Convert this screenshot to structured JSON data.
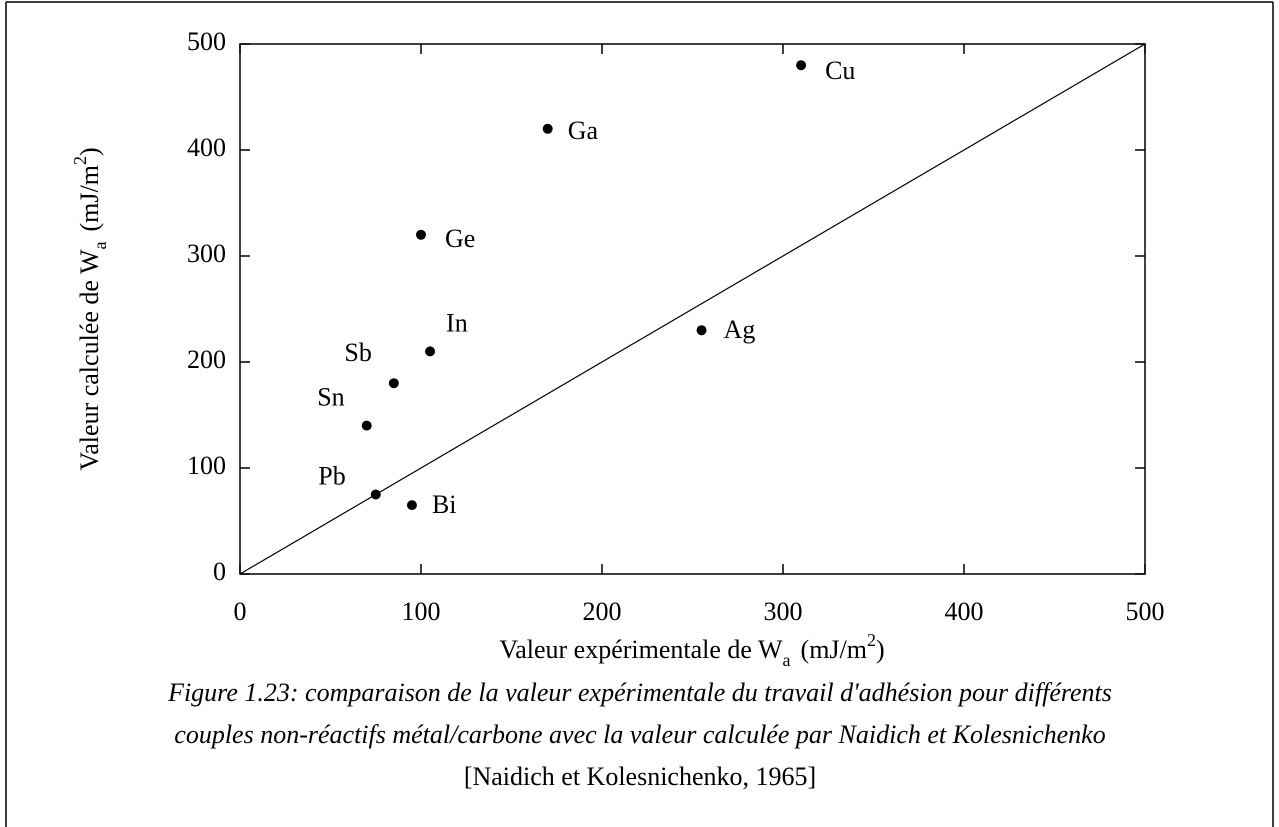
{
  "chart_data": {
    "type": "scatter",
    "labels": [
      "Cu",
      "Ga",
      "Ge",
      "In",
      "Sb",
      "Sn",
      "Pb",
      "Bi",
      "Ag"
    ],
    "x": [
      310,
      170,
      100,
      105,
      85,
      70,
      75,
      95,
      255
    ],
    "values": [
      480,
      420,
      320,
      210,
      180,
      140,
      75,
      65,
      230
    ],
    "color": "#000000",
    "reference_line": {
      "x": [
        0,
        500
      ],
      "y": [
        0,
        500
      ]
    },
    "xlim": [
      0,
      500
    ],
    "xticks": [
      0,
      100,
      200,
      300,
      400,
      500
    ],
    "ylim": [
      0,
      500
    ],
    "yticks": [
      0,
      100,
      200,
      300,
      400,
      500
    ],
    "xlabel": [
      "Valeur expérimentale de W",
      "a",
      "(mJ/m",
      "2",
      ")"
    ],
    "ylabel": [
      "Valeur calculée de W",
      "a",
      "(mJ/m",
      "2",
      ")"
    ],
    "caption": [
      "Figure 1.23: comparaison de la valeur expérimentale du travail d'adhésion pour différents",
      "couples non-réactifs métal/carbone avec la valeur calculée par Naidich et Kolesnichenko",
      "[Naidich et Kolesnichenko, 1965]"
    ]
  }
}
